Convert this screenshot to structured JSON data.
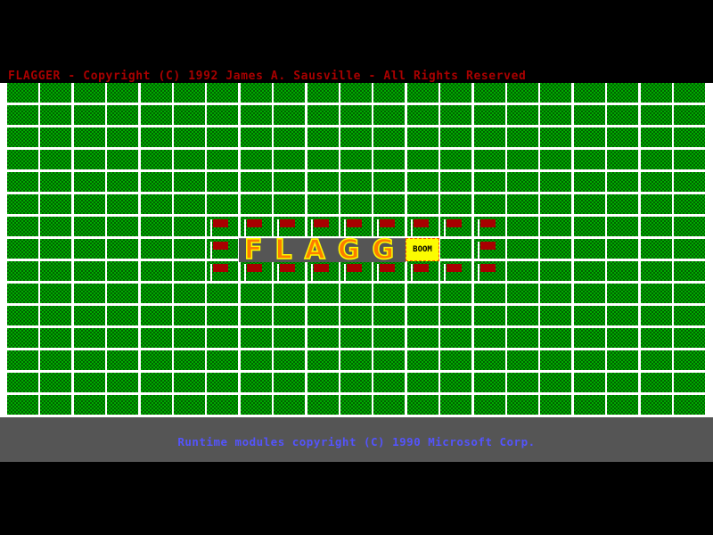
{
  "title": "FLAGGER - Copyright (C) 1992 James A. Sausville - All Rights Reserved",
  "board": {
    "columns": 21,
    "rows": 15,
    "flag_cells": [
      [
        6,
        6
      ],
      [
        6,
        7
      ],
      [
        6,
        8
      ],
      [
        6,
        9
      ],
      [
        6,
        10
      ],
      [
        6,
        11
      ],
      [
        6,
        12
      ],
      [
        6,
        13
      ],
      [
        6,
        14
      ],
      [
        7,
        6
      ],
      [
        7,
        14
      ],
      [
        8,
        6
      ],
      [
        8,
        7
      ],
      [
        8,
        8
      ],
      [
        8,
        9
      ],
      [
        8,
        10
      ],
      [
        8,
        11
      ],
      [
        8,
        12
      ],
      [
        8,
        13
      ],
      [
        8,
        14
      ]
    ]
  },
  "banner": {
    "text": "FLAGG",
    "boom": "BOOM"
  },
  "footer": "Runtime modules copyright (C) 1990 Microsoft Corp.",
  "colors": {
    "title": "#a80000",
    "grass": "#00a800",
    "flag": "#a80000",
    "footer_text": "#5454fc",
    "footer_bg": "#555555"
  }
}
